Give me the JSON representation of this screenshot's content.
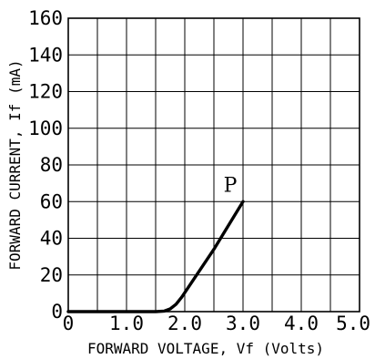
{
  "chart_data": {
    "type": "line",
    "xlabel": "FORWARD VOLTAGE, Vf (Volts)",
    "ylabel": "FORWARD CURRENT, If (mA)",
    "xlim": [
      0,
      5
    ],
    "ylim": [
      0,
      160
    ],
    "x_ticks": [
      "0",
      "1.0",
      "2.0",
      "3.0",
      "4.0",
      "5.0"
    ],
    "y_ticks": [
      "0",
      "20",
      "40",
      "60",
      "80",
      "100",
      "120",
      "140",
      "160"
    ],
    "grid": true,
    "series": [
      {
        "name": "P",
        "color": "#000000",
        "x": [
          0,
          1.5,
          1.65,
          1.75,
          1.85,
          1.95,
          2.5,
          3.0
        ],
        "y": [
          0,
          0,
          0.3,
          1.5,
          4,
          8,
          34,
          60
        ]
      }
    ]
  }
}
